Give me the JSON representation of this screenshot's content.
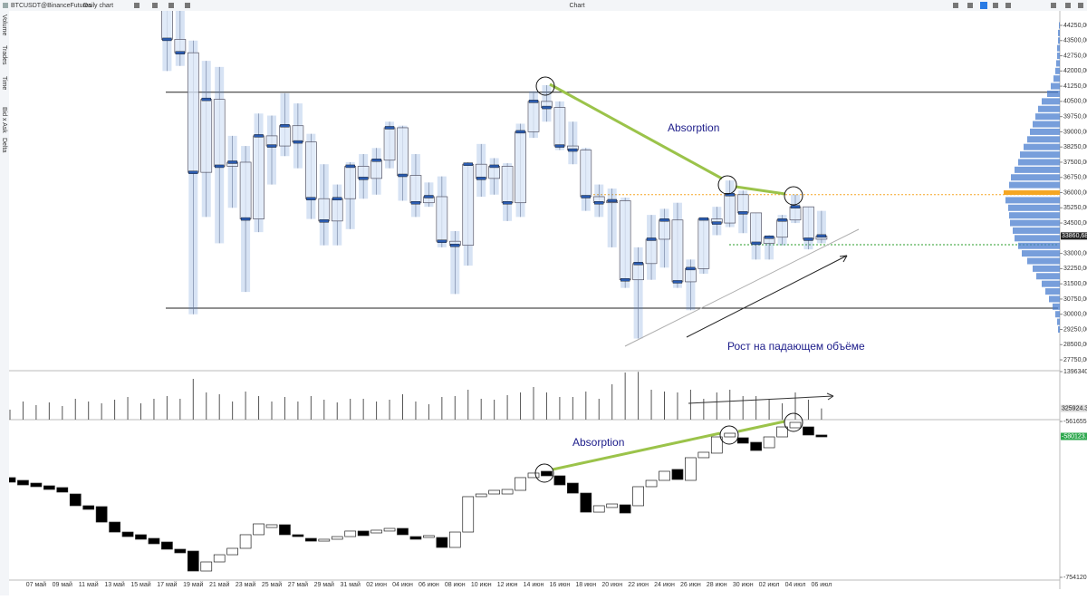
{
  "toolbar": {
    "symbol": "BTCUSDT@BinanceFutures",
    "timeframe": "Daily chart",
    "title": "Chart"
  },
  "sidebar": [
    "Volume",
    "Trades",
    "Time",
    "Bid x Ask",
    "Delta"
  ],
  "chart_data": [
    {
      "type": "candlestick",
      "categories": [
        null,
        null,
        "07 май",
        null,
        "09 май",
        null,
        "11 май",
        null,
        "13 май",
        null,
        "15 май",
        null,
        "17 май",
        null,
        "19 май",
        null,
        "21 май",
        null,
        "23 май",
        null,
        "25 май",
        null,
        "27 май",
        null,
        "29 май",
        null,
        "31 май",
        null,
        "02 июн",
        null,
        "04 июн",
        null,
        "06 июн",
        null,
        "08 июн",
        null,
        "10 июн",
        null,
        "12 июн",
        null,
        "14 июн",
        null,
        "16 июн",
        null,
        "18 июн",
        null,
        "20 июн",
        null,
        "22 июн",
        null,
        "24 июн",
        null,
        "26 июн",
        null,
        "28 июн",
        null,
        "30 июн",
        null,
        "02 июл",
        null,
        "04 июл",
        null,
        "06 июл"
      ],
      "open": [
        null,
        null,
        null,
        null,
        null,
        null,
        null,
        null,
        null,
        null,
        null,
        null,
        46430,
        43560,
        42900,
        37000,
        40600,
        37300,
        37500,
        34700,
        38800,
        38300,
        39300,
        38500,
        35700,
        34600,
        35700,
        37300,
        36700,
        37600,
        39200,
        36850,
        35500,
        35800,
        33600,
        33400,
        37400,
        36700,
        37300,
        35500,
        39000,
        40500,
        40200,
        38300,
        38100,
        35800,
        35500,
        35600,
        31700,
        32500,
        33700,
        34650,
        31600,
        32250,
        34700,
        34500,
        35900,
        35000,
        33500,
        33800,
        34650,
        35300,
        33700
      ],
      "high": [
        null,
        null,
        null,
        null,
        null,
        null,
        null,
        null,
        null,
        null,
        null,
        null,
        46600,
        45800,
        43500,
        42500,
        42200,
        38800,
        38300,
        39900,
        39800,
        40900,
        40400,
        38900,
        37400,
        36400,
        37500,
        37900,
        38200,
        39500,
        39300,
        37900,
        36500,
        36800,
        34100,
        37500,
        38400,
        37700,
        37450,
        39400,
        41000,
        41300,
        40500,
        39500,
        38200,
        36400,
        36200,
        35750,
        33300,
        34900,
        35200,
        35500,
        32700,
        34700,
        35300,
        36600,
        36100,
        35000,
        33900,
        34900,
        35900,
        35300,
        35100
      ],
      "low": [
        null,
        null,
        null,
        null,
        null,
        null,
        null,
        null,
        null,
        null,
        null,
        null,
        42000,
        42250,
        30000,
        34800,
        33500,
        35250,
        31100,
        34050,
        36400,
        37800,
        37200,
        34700,
        33400,
        33400,
        34200,
        35700,
        35900,
        37200,
        35600,
        34800,
        35300,
        33300,
        31000,
        32400,
        35800,
        35900,
        34600,
        34800,
        38700,
        39500,
        38100,
        37400,
        35100,
        34800,
        33300,
        31300,
        28800,
        31700,
        32300,
        31300,
        30200,
        32000,
        33900,
        34300,
        34000,
        32700,
        32700,
        33400,
        34500,
        33200,
        33500
      ],
      "close": [
        null,
        null,
        null,
        null,
        null,
        null,
        null,
        null,
        null,
        null,
        null,
        null,
        43560,
        42900,
        37000,
        40600,
        37300,
        37500,
        34700,
        38800,
        38300,
        39300,
        38500,
        35700,
        34600,
        35700,
        37300,
        36700,
        37600,
        39200,
        36850,
        35500,
        35800,
        33600,
        33400,
        37400,
        36700,
        37300,
        35500,
        39000,
        40500,
        40200,
        38300,
        38100,
        35800,
        35500,
        35600,
        31700,
        32500,
        33700,
        34650,
        31600,
        32250,
        34700,
        34500,
        35900,
        35000,
        33500,
        33800,
        34650,
        35300,
        33700,
        33860.68
      ],
      "color": "#4a7ecf",
      "ylim": [
        27260,
        44965
      ],
      "yticks": [
        {
          "value": 44250,
          "label": "44250,00"
        },
        {
          "value": 43500,
          "label": "43500,00"
        },
        {
          "value": 42750,
          "label": "42750,00"
        },
        {
          "value": 42000,
          "label": "42000,00"
        },
        {
          "value": 41250,
          "label": "41250,00"
        },
        {
          "value": 40500,
          "label": "40500,00"
        },
        {
          "value": 39750,
          "label": "39750,00"
        },
        {
          "value": 39000,
          "label": "39000,00"
        },
        {
          "value": 38250,
          "label": "38250,00"
        },
        {
          "value": 37500,
          "label": "37500,00"
        },
        {
          "value": 36750,
          "label": "36750,00"
        },
        {
          "value": 36000,
          "label": "36000,00"
        },
        {
          "value": 35250,
          "label": "35250,00"
        },
        {
          "value": 34500,
          "label": "34500,00"
        },
        {
          "value": 33000,
          "label": "33000,00"
        },
        {
          "value": 32250,
          "label": "32250,00"
        },
        {
          "value": 31500,
          "label": "31500,00"
        },
        {
          "value": 30750,
          "label": "30750,00"
        },
        {
          "value": 30000,
          "label": "30000,00"
        },
        {
          "value": 29250,
          "label": "29250,00"
        },
        {
          "value": 28500,
          "label": "28500,00"
        },
        {
          "value": 27750,
          "label": "27750,00"
        }
      ],
      "hlines": [
        {
          "value": 40950,
          "color": "#222222",
          "dash": false
        },
        {
          "value": 30300,
          "color": "#222222",
          "dash": false
        },
        {
          "value": 35900,
          "color": "#f5a623",
          "dash": true
        },
        {
          "value": 33430,
          "color": "#2a9d2a",
          "dash": true
        }
      ],
      "last_price": {
        "value": 33860.68,
        "label": "33860,68"
      },
      "annotations": [
        "Absorption",
        "Рост на падающем объёме"
      ],
      "volume_profile": {
        "levels": [
          29250,
          29625,
          30000,
          30375,
          30750,
          31125,
          31500,
          31875,
          32250,
          32625,
          33000,
          33375,
          33750,
          34125,
          34500,
          34875,
          35250,
          35625,
          36000,
          36375,
          36750,
          37125,
          37500,
          37875,
          38250,
          38625,
          39000,
          39375,
          39750,
          40125,
          40500,
          40875,
          41250,
          41625,
          42000,
          42375,
          42750,
          43125,
          43500,
          43875,
          44250
        ],
        "values": [
          2,
          3,
          5,
          8,
          12,
          16,
          20,
          26,
          30,
          36,
          42,
          46,
          50,
          52,
          55,
          56,
          57,
          60,
          62,
          56,
          54,
          50,
          46,
          44,
          40,
          36,
          33,
          30,
          27,
          24,
          20,
          14,
          10,
          7,
          5,
          4,
          3,
          3,
          2,
          2,
          1
        ],
        "color": "#4a7ecf",
        "poc_color": "#f5a623"
      }
    },
    {
      "type": "bar",
      "values": [
        289800,
        526900,
        421500,
        500600,
        395200,
        606000,
        526900,
        474200,
        579600,
        658700,
        474200,
        606000,
        685000,
        606000,
        1185600,
        790400,
        737700,
        526900,
        816700,
        685000,
        526900,
        658700,
        526900,
        685000,
        579600,
        500600,
        606000,
        606000,
        526900,
        579600,
        737700,
        526900,
        447900,
        658700,
        685000,
        869400,
        606000,
        579600,
        711300,
        790400,
        948500,
        790400,
        658700,
        658700,
        816700,
        606000,
        1027500,
        1370000,
        1390000,
        869400,
        816700,
        790400,
        869400,
        606000,
        790400,
        869400,
        685000,
        685000,
        579600,
        474200,
        790400,
        579600,
        325924.37
      ],
      "color": "#555555",
      "ylim": [
        0,
        1396340.25
      ],
      "yticks": [
        1396340.25
      ],
      "last_value": 325924.37
    },
    {
      "type": "candlestick",
      "open": [
        -631000,
        -634400,
        -637800,
        -641100,
        -643300,
        -651200,
        -665700,
        -666800,
        -685900,
        -698200,
        -701500,
        -706000,
        -710500,
        -719400,
        -721700,
        -746300,
        -735100,
        -726200,
        -718300,
        -701500,
        -692600,
        -689200,
        -701500,
        -706000,
        -709400,
        -707100,
        -703800,
        -697000,
        -699300,
        -697000,
        -693700,
        -703800,
        -704900,
        -704900,
        -717200,
        -698200,
        -654500,
        -651200,
        -651200,
        -646700,
        -631000,
        -623200,
        -628800,
        -637800,
        -650100,
        -673600,
        -667900,
        -664600,
        -665700,
        -642200,
        -634400,
        -620900,
        -634400,
        -606400,
        -600800,
        -580700,
        -581800,
        -587400,
        -594100,
        -580700,
        -569500,
        -568400,
        -578400
      ],
      "close": [
        -636600,
        -640000,
        -642200,
        -645600,
        -648900,
        -665700,
        -670200,
        -685900,
        -698200,
        -703800,
        -707100,
        -712700,
        -719400,
        -723900,
        -746300,
        -735100,
        -726200,
        -718300,
        -701500,
        -688100,
        -689200,
        -701500,
        -703800,
        -709400,
        -707100,
        -703800,
        -697000,
        -702600,
        -695900,
        -693700,
        -701500,
        -707100,
        -702600,
        -717200,
        -698200,
        -654500,
        -651200,
        -646700,
        -645600,
        -631000,
        -625400,
        -628800,
        -640000,
        -650100,
        -673600,
        -665700,
        -663500,
        -674700,
        -642200,
        -634400,
        -623200,
        -633300,
        -606400,
        -599700,
        -580700,
        -576200,
        -588500,
        -597500,
        -580700,
        -568400,
        -562800,
        -578400,
        -580700
      ],
      "ylim": [
        -757480,
        -559420
      ],
      "yticks": [
        -561655.97,
        -754120.66
      ],
      "last_value": -580123.6,
      "annotations": [
        "Absorption"
      ]
    }
  ]
}
